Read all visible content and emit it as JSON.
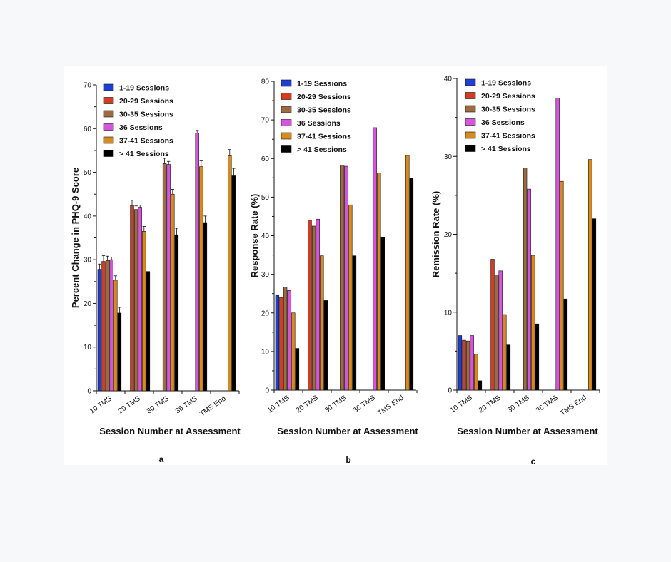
{
  "series_colors": [
    "#1f3fd1",
    "#d53a22",
    "#9b6b44",
    "#d655dd",
    "#d98a1f",
    "#000000"
  ],
  "chart_data": [
    {
      "type": "bar",
      "panel": "a",
      "ylabel": "Percent Change in PHQ-9 Score",
      "xlabel": "Session Number at Assessment",
      "ylim": [
        0,
        70
      ],
      "yticks": [
        0,
        10,
        20,
        30,
        40,
        50,
        60,
        70
      ],
      "categories": [
        "10 TMS",
        "20 TMS",
        "30 TMS",
        "36 TMS",
        "TMS End"
      ],
      "error_bars": true,
      "legend": "top-left",
      "series": [
        {
          "name": "1-19 Sessions",
          "values": [
            27.8,
            null,
            null,
            null,
            null
          ],
          "errors": [
            1.2,
            null,
            null,
            null,
            null
          ]
        },
        {
          "name": "20-29 Sessions",
          "values": [
            29.6,
            42.4,
            null,
            null,
            null
          ],
          "errors": [
            1.3,
            1.2,
            null,
            null,
            null
          ]
        },
        {
          "name": "30-35 Sessions",
          "values": [
            29.8,
            41.5,
            52.0,
            null,
            null
          ],
          "errors": [
            1.0,
            0.8,
            1.2,
            null,
            null
          ]
        },
        {
          "name": "36 Sessions",
          "values": [
            30.0,
            42.0,
            51.8,
            59.0,
            null
          ],
          "errors": [
            0.6,
            0.5,
            0.7,
            0.6,
            null
          ]
        },
        {
          "name": "37-41 Sessions",
          "values": [
            25.3,
            36.5,
            45.0,
            51.3,
            53.8
          ],
          "errors": [
            1.0,
            1.1,
            1.1,
            1.3,
            1.4
          ]
        },
        {
          "name": "> 41 Sessions",
          "values": [
            17.8,
            27.3,
            35.7,
            38.5,
            49.2
          ],
          "errors": [
            1.3,
            1.5,
            1.5,
            1.5,
            1.7
          ]
        }
      ]
    },
    {
      "type": "bar",
      "panel": "b",
      "ylabel": "Response Rate (%)",
      "xlabel": "Session Number at Assessment",
      "ylim": [
        0,
        80
      ],
      "yticks": [
        0,
        10,
        20,
        30,
        40,
        50,
        60,
        70,
        80
      ],
      "categories": [
        "10 TMS",
        "20 TMS",
        "30 TMS",
        "36 TMS",
        "TMS End"
      ],
      "error_bars": false,
      "legend": "top-left",
      "series": [
        {
          "name": "1-19 Sessions",
          "values": [
            24.5,
            null,
            null,
            null,
            null
          ]
        },
        {
          "name": "20-29 Sessions",
          "values": [
            24.0,
            44.0,
            null,
            null,
            null
          ]
        },
        {
          "name": "30-35 Sessions",
          "values": [
            26.7,
            42.5,
            58.3,
            null,
            null
          ]
        },
        {
          "name": "36 Sessions",
          "values": [
            25.8,
            44.3,
            58.0,
            68.0,
            null
          ]
        },
        {
          "name": "37-41 Sessions",
          "values": [
            20.0,
            34.8,
            48.0,
            56.3,
            60.8
          ]
        },
        {
          "name": "> 41 Sessions",
          "values": [
            10.8,
            23.2,
            34.8,
            39.6,
            55.0
          ]
        }
      ]
    },
    {
      "type": "bar",
      "panel": "c",
      "ylabel": "Remission Rate (%)",
      "xlabel": "Session Number at Assessment",
      "ylim": [
        0,
        40
      ],
      "yticks": [
        0,
        10,
        20,
        30,
        40
      ],
      "categories": [
        "10 TMS",
        "20 TMS",
        "30 TMS",
        "36 TMS",
        "TMS End"
      ],
      "error_bars": false,
      "legend": "top-left",
      "series": [
        {
          "name": "1-19 Sessions",
          "values": [
            7.0,
            null,
            null,
            null,
            null
          ]
        },
        {
          "name": "20-29 Sessions",
          "values": [
            6.4,
            16.8,
            null,
            null,
            null
          ]
        },
        {
          "name": "30-35 Sessions",
          "values": [
            6.3,
            14.8,
            28.5,
            null,
            null
          ]
        },
        {
          "name": "36 Sessions",
          "values": [
            7.0,
            15.3,
            25.8,
            37.5,
            null
          ]
        },
        {
          "name": "37-41 Sessions",
          "values": [
            4.6,
            9.7,
            17.3,
            26.8,
            29.6
          ]
        },
        {
          "name": "> 41 Sessions",
          "values": [
            1.2,
            5.8,
            8.5,
            11.7,
            22.0
          ]
        }
      ]
    }
  ]
}
